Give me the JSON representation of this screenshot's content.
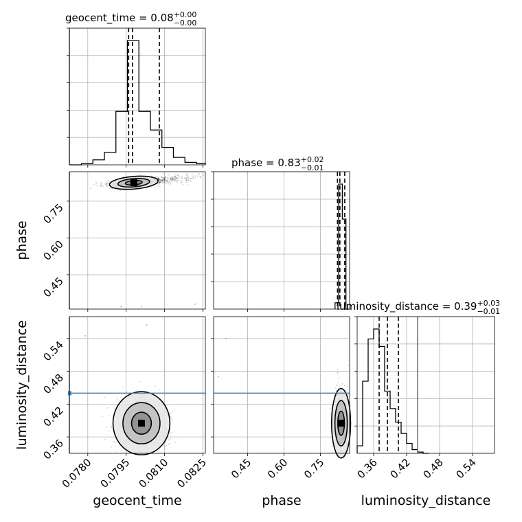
{
  "chart_data": {
    "type": "corner",
    "parameters": [
      {
        "key": "geocent_time",
        "label": "geocent_time",
        "title": {
          "prefix": "geocent_time = ",
          "value": "0.08",
          "plus": "+0.00",
          "minus": "−0.00"
        },
        "range": [
          0.07728,
          0.0826
        ],
        "ticks": [
          0.078,
          0.0795,
          0.081,
          0.0825
        ],
        "tick_labels": [
          "0.0780",
          "0.0795",
          "0.0810",
          "0.0825"
        ],
        "quantiles": [
          0.0796,
          0.07975,
          0.0808
        ],
        "injection": 0.07728,
        "hist_x": [
          0.07728,
          0.07775,
          0.0782,
          0.07865,
          0.0791,
          0.07955,
          0.08,
          0.08045,
          0.0809,
          0.08135,
          0.0818,
          0.08225,
          0.0826
        ],
        "hist_y": [
          0.0,
          0.01,
          0.04,
          0.1,
          0.43,
          1.0,
          0.43,
          0.28,
          0.14,
          0.06,
          0.02,
          0.01
        ]
      },
      {
        "key": "phase",
        "label": "phase",
        "title": {
          "prefix": "phase = ",
          "value": "0.83",
          "plus": "+0.02",
          "minus": "−0.01"
        },
        "range": [
          0.31,
          0.87
        ],
        "ticks": [
          0.45,
          0.6,
          0.75
        ],
        "tick_labels": [
          "0.45",
          "0.60",
          "0.75"
        ],
        "quantiles": [
          0.82,
          0.83,
          0.85
        ],
        "hist_x": [
          0.81,
          0.825,
          0.84,
          0.855,
          0.87
        ],
        "hist_y": [
          0.05,
          1.0,
          0.72,
          0.0
        ]
      },
      {
        "key": "luminosity_distance",
        "label": "luminosity_distance",
        "title": {
          "prefix": "luminosity_distance = ",
          "value": "0.39",
          "plus": "+0.03",
          "minus": "−0.01"
        },
        "range": [
          0.33,
          0.58
        ],
        "ticks": [
          0.36,
          0.42,
          0.48,
          0.54
        ],
        "tick_labels": [
          "0.36",
          "0.42",
          "0.48",
          "0.54"
        ],
        "quantiles": [
          0.37,
          0.385,
          0.405
        ],
        "injection": 0.44,
        "hist_x": [
          0.33,
          0.34,
          0.35,
          0.36,
          0.37,
          0.38,
          0.39,
          0.4,
          0.41,
          0.42,
          0.43,
          0.44,
          0.45,
          0.46
        ],
        "hist_y": [
          0.06,
          0.58,
          0.92,
          1.0,
          0.86,
          0.5,
          0.36,
          0.25,
          0.16,
          0.08,
          0.03,
          0.01,
          0.0
        ]
      }
    ],
    "injection_color": "#4682b4",
    "grid": true,
    "scatter_centers": {
      "time_phase": [
        0.0798,
        0.825
      ],
      "time_dist": [
        0.0801,
        0.385
      ],
      "phase_dist": [
        0.835,
        0.385
      ]
    },
    "outlier_points": {
      "time_phase": [
        [
          0.0793,
          0.32
        ],
        [
          0.0801,
          0.32
        ],
        [
          0.0822,
          0.33
        ]
      ],
      "time_dist": [
        [
          0.0779,
          0.545
        ],
        [
          0.0803,
          0.565
        ]
      ],
      "phase_dist": [
        [
          0.33,
          0.47
        ],
        [
          0.36,
          0.54
        ]
      ]
    }
  }
}
